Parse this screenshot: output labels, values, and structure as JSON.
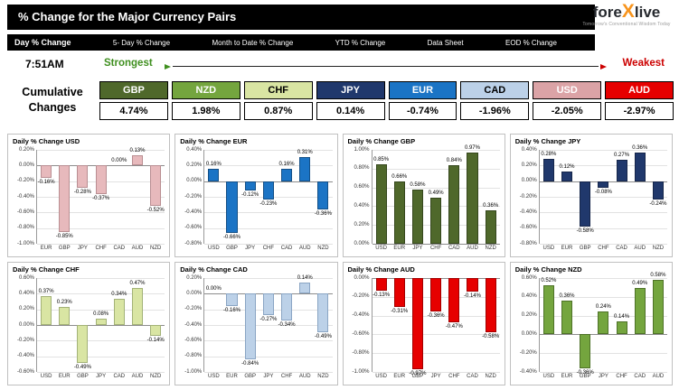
{
  "header": {
    "title": "% Change for the Major Currency Pairs",
    "logo": {
      "fore": "fore",
      "x": "X",
      "live": "live",
      "tagline": "Tomorrow's Conventional Wisdom Today"
    }
  },
  "nav": {
    "items": [
      "Day % Change",
      "5- Day % Change",
      "Month to Date % Change",
      "YTD % Change",
      "Data Sheet",
      "EOD % Change"
    ]
  },
  "toolbar": {
    "time": "7:51AM",
    "strongest": "Strongest",
    "weakest": "Weakest",
    "strongest_color": "#3f8f1f",
    "weakest_color": "#cc0000"
  },
  "cumulative": {
    "label": [
      "Cumulative",
      "Changes"
    ],
    "entries": [
      {
        "code": "GBP",
        "value": "4.74%",
        "bg": "#4f682b",
        "fg": "#ffffff"
      },
      {
        "code": "NZD",
        "value": "1.98%",
        "bg": "#74a53e",
        "fg": "#ffffff"
      },
      {
        "code": "CHF",
        "value": "0.87%",
        "bg": "#d9e5a3",
        "fg": "#000000"
      },
      {
        "code": "JPY",
        "value": "0.14%",
        "bg": "#20386c",
        "fg": "#ffffff"
      },
      {
        "code": "EUR",
        "value": "-0.74%",
        "bg": "#1b74c5",
        "fg": "#ffffff"
      },
      {
        "code": "CAD",
        "value": "-1.96%",
        "bg": "#bcd1e8",
        "fg": "#000000"
      },
      {
        "code": "USD",
        "value": "-2.05%",
        "bg": "#dba3a6",
        "fg": "#ffffff"
      },
      {
        "code": "AUD",
        "value": "-2.97%",
        "bg": "#e60000",
        "fg": "#ffffff"
      }
    ]
  },
  "chart_data": [
    {
      "type": "bar",
      "title": "Daily % Change USD",
      "categories": [
        "EUR",
        "GBP",
        "JPY",
        "CHF",
        "CAD",
        "AUD",
        "NZD"
      ],
      "values": [
        -0.16,
        -0.85,
        -0.28,
        -0.37,
        0.0,
        0.13,
        -0.52
      ],
      "ylim": [
        -1.0,
        0.2
      ],
      "ystep": 0.2,
      "bar_color": "#e7b9bc",
      "bar_border": "#b98e92"
    },
    {
      "type": "bar",
      "title": "Daily % Change EUR",
      "categories": [
        "USD",
        "GBP",
        "JPY",
        "CHF",
        "CAD",
        "AUD",
        "NZD"
      ],
      "values": [
        0.16,
        -0.66,
        -0.12,
        -0.23,
        0.16,
        0.31,
        -0.36
      ],
      "ylim": [
        -0.8,
        0.4
      ],
      "ystep": 0.2,
      "bar_color": "#1b74c5",
      "bar_border": "#134f86"
    },
    {
      "type": "bar",
      "title": "Daily % Change GBP",
      "categories": [
        "USD",
        "EUR",
        "JPY",
        "CHF",
        "CAD",
        "AUD",
        "NZD"
      ],
      "values": [
        0.85,
        0.66,
        0.58,
        0.49,
        0.84,
        0.97,
        0.36
      ],
      "ylim": [
        0.0,
        1.0
      ],
      "ystep": 0.2,
      "bar_color": "#4f682b",
      "bar_border": "#35471d"
    },
    {
      "type": "bar",
      "title": "Daily % Change JPY",
      "categories": [
        "USD",
        "EUR",
        "GBP",
        "CHF",
        "CAD",
        "AUD",
        "NZD"
      ],
      "values": [
        0.28,
        0.12,
        -0.58,
        -0.08,
        0.27,
        0.36,
        -0.24
      ],
      "ylim": [
        -0.8,
        0.4
      ],
      "ystep": 0.2,
      "bar_color": "#20386c",
      "bar_border": "#16264a"
    },
    {
      "type": "bar",
      "title": "Daily % Change CHF",
      "categories": [
        "USD",
        "EUR",
        "GBP",
        "JPY",
        "CAD",
        "AUD",
        "NZD"
      ],
      "values": [
        0.37,
        0.23,
        -0.49,
        0.08,
        0.34,
        0.47,
        -0.14
      ],
      "ylim": [
        -0.6,
        0.6
      ],
      "ystep": 0.2,
      "bar_color": "#d9e5a3",
      "bar_border": "#a3b277"
    },
    {
      "type": "bar",
      "title": "Daily % Change CAD",
      "categories": [
        "USD",
        "EUR",
        "GBP",
        "JPY",
        "CHF",
        "AUD",
        "NZD"
      ],
      "values": [
        0.0,
        -0.16,
        -0.84,
        -0.27,
        -0.34,
        0.14,
        -0.49
      ],
      "ylim": [
        -1.0,
        0.2
      ],
      "ystep": 0.2,
      "bar_color": "#bcd1e8",
      "bar_border": "#8aa5c4"
    },
    {
      "type": "bar",
      "title": "Daily % Change AUD",
      "categories": [
        "USD",
        "EUR",
        "GBP",
        "JPY",
        "CHF",
        "CAD",
        "NZD"
      ],
      "values": [
        -0.13,
        -0.31,
        -0.97,
        -0.36,
        -0.47,
        -0.14,
        -0.58
      ],
      "ylim": [
        -1.0,
        0.0
      ],
      "ystep": 0.2,
      "bar_color": "#e60000",
      "bar_border": "#a30000"
    },
    {
      "type": "bar",
      "title": "Daily % Change NZD",
      "categories": [
        "USD",
        "EUR",
        "GBP",
        "JPY",
        "CHF",
        "CAD",
        "AUD"
      ],
      "values": [
        0.52,
        0.36,
        -0.36,
        0.24,
        0.14,
        0.49,
        0.58
      ],
      "ylim": [
        -0.4,
        0.6
      ],
      "ystep": 0.2,
      "bar_color": "#74a53e",
      "bar_border": "#4e7228"
    }
  ]
}
